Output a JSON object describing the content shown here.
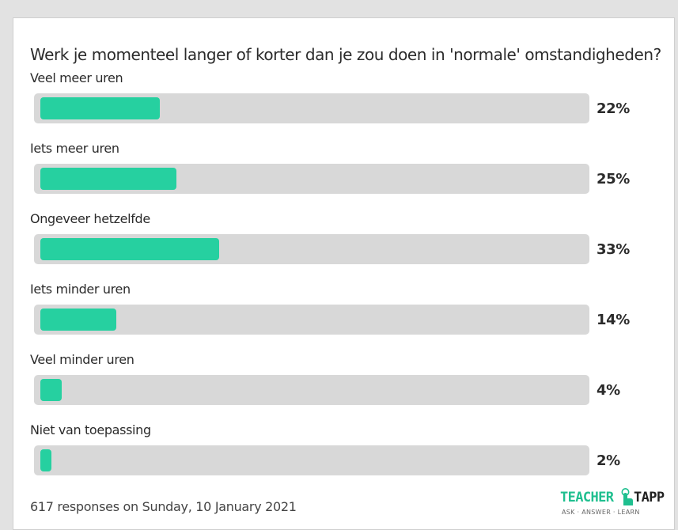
{
  "chart_data": {
    "type": "bar",
    "title": "Werk je momenteel langer of korter dan je zou doen in 'normale' omstandigheden?",
    "categories": [
      "Veel meer uren",
      "Iets meer uren",
      "Ongeveer hetzelfde",
      "Iets minder uren",
      "Veel minder uren",
      "Niet van toepassing"
    ],
    "values": [
      22,
      25,
      33,
      14,
      4,
      2
    ],
    "value_labels": [
      "22%",
      "25%",
      "33%",
      "14%",
      "4%",
      "2%"
    ],
    "ylim": [
      0,
      100
    ],
    "orientation": "horizontal"
  },
  "footer": {
    "responses": "617 responses on Sunday, 10 January 2021"
  },
  "logo": {
    "word_left": "TEACHER",
    "word_right": "TAPP",
    "tagline": "ASK · ANSWER · LEARN"
  },
  "colors": {
    "bar_fill": "#26d0a0",
    "track": "#d8d8d8",
    "logo_green": "#1fbf8f",
    "logo_dark": "#222222"
  }
}
